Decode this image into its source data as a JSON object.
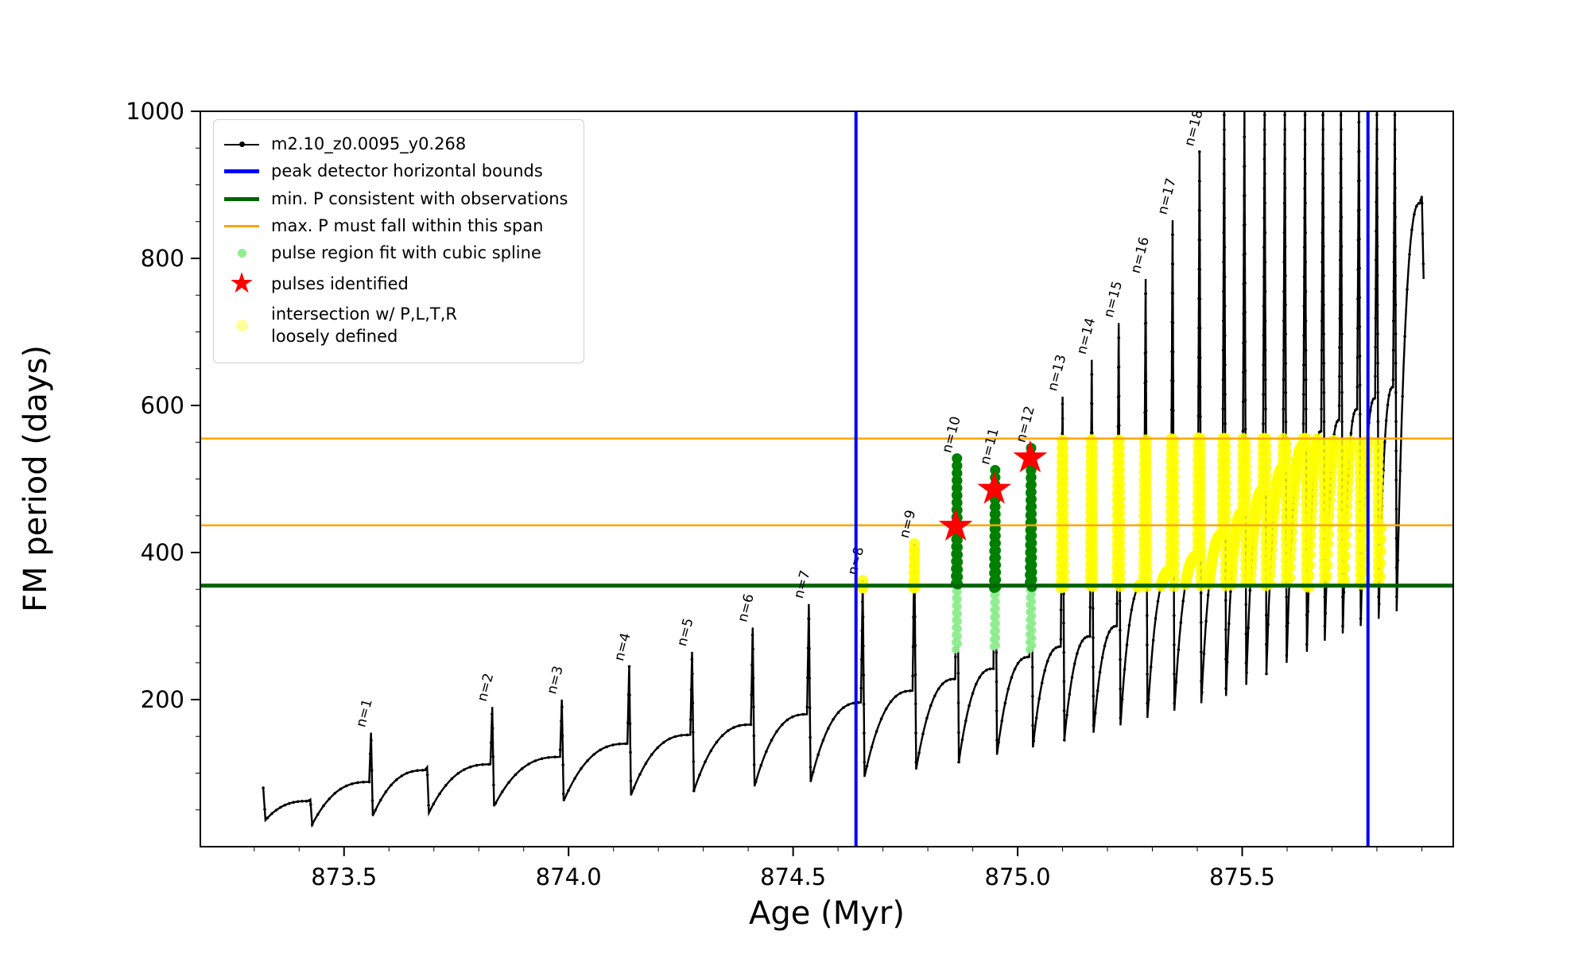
{
  "chart_data": {
    "type": "line",
    "title": "",
    "xlabel": "Age (Myr)",
    "ylabel": "FM period (days)",
    "xlim": [
      873.18,
      875.97
    ],
    "ylim": [
      0,
      1000
    ],
    "xticks": [
      873.5,
      874.0,
      874.5,
      875.0,
      875.5
    ],
    "yticks": [
      200,
      400,
      600,
      800,
      1000
    ],
    "x_minor_step": 0.1,
    "y_minor_step": 50,
    "grid": false,
    "legend_position": "upper left",
    "series_label": "m2.10_z0.0095_y0.268",
    "colors": {
      "series": "#000000",
      "bounds": "#0000ff",
      "min_p": "#006400",
      "max_p_span": "#ffa500",
      "spline_fit": "#90ee90",
      "pulse_region": "#008000",
      "pulse_star": "#ff0000",
      "intersection": "#ffff00"
    },
    "start": {
      "x": 873.32,
      "y": 80,
      "drop": 36
    },
    "pulses": [
      {
        "x": 873.425,
        "shoulder": 62,
        "peak": 64,
        "dip": 30
      },
      {
        "x": 873.56,
        "shoulder": 88,
        "peak": 155,
        "dip": 42,
        "label": "n=1"
      },
      {
        "x": 873.685,
        "shoulder": 104,
        "peak": 108,
        "dip": 46
      },
      {
        "x": 873.83,
        "shoulder": 112,
        "peak": 190,
        "dip": 55,
        "label": "n=2"
      },
      {
        "x": 873.985,
        "shoulder": 122,
        "peak": 200,
        "dip": 62,
        "label": "n=3"
      },
      {
        "x": 874.135,
        "shoulder": 140,
        "peak": 245,
        "dip": 70,
        "label": "n=4"
      },
      {
        "x": 874.275,
        "shoulder": 152,
        "peak": 265,
        "dip": 76,
        "label": "n=5"
      },
      {
        "x": 874.41,
        "shoulder": 166,
        "peak": 298,
        "dip": 82,
        "label": "n=6"
      },
      {
        "x": 874.535,
        "shoulder": 180,
        "peak": 330,
        "dip": 88,
        "label": "n=7"
      },
      {
        "x": 874.655,
        "shoulder": 196,
        "peak": 362,
        "dip": 95,
        "label": "n=8"
      },
      {
        "x": 874.77,
        "shoulder": 212,
        "peak": 412,
        "dip": 105,
        "label": "n=9"
      },
      {
        "x": 874.865,
        "shoulder": 228,
        "peak": 528,
        "dip": 115,
        "label": "n=10"
      },
      {
        "x": 874.95,
        "shoulder": 242,
        "peak": 512,
        "dip": 125,
        "label": "n=11"
      },
      {
        "x": 875.03,
        "shoulder": 258,
        "peak": 542,
        "dip": 135,
        "label": "n=12"
      },
      {
        "x": 875.1,
        "shoulder": 272,
        "peak": 612,
        "dip": 145,
        "label": "n=13"
      },
      {
        "x": 875.165,
        "shoulder": 286,
        "peak": 662,
        "dip": 155,
        "label": "n=14"
      },
      {
        "x": 875.225,
        "shoulder": 300,
        "peak": 712,
        "dip": 165,
        "label": "n=15"
      },
      {
        "x": 875.285,
        "shoulder": 358,
        "peak": 772,
        "dip": 175,
        "label": "n=16"
      },
      {
        "x": 875.345,
        "shoulder": 376,
        "peak": 852,
        "dip": 185,
        "label": "n=17"
      },
      {
        "x": 875.405,
        "shoulder": 396,
        "peak": 945,
        "dip": 195,
        "label": "n=18"
      },
      {
        "x": 875.46,
        "shoulder": 425,
        "peak": 1005,
        "dip": 205
      },
      {
        "x": 875.505,
        "shoulder": 455,
        "peak": 1005,
        "dip": 220
      },
      {
        "x": 875.55,
        "shoulder": 485,
        "peak": 1005,
        "dip": 235
      },
      {
        "x": 875.595,
        "shoulder": 515,
        "peak": 1005,
        "dip": 250
      },
      {
        "x": 875.64,
        "shoulder": 545,
        "peak": 1005,
        "dip": 265
      },
      {
        "x": 875.68,
        "shoulder": 565,
        "peak": 1005,
        "dip": 280
      },
      {
        "x": 875.72,
        "shoulder": 580,
        "peak": 1005,
        "dip": 290
      },
      {
        "x": 875.76,
        "shoulder": 595,
        "peak": 1005,
        "dip": 300
      },
      {
        "x": 875.8,
        "shoulder": 610,
        "peak": 1005,
        "dip": 310
      },
      {
        "x": 875.84,
        "shoulder": 625,
        "peak": 1005,
        "dip": 320
      },
      {
        "x": 875.9,
        "shoulder": 875,
        "peak": 885,
        "dip": 772
      }
    ],
    "vlines": {
      "x": [
        874.64,
        875.78
      ],
      "color": "#0000ff",
      "width": 4
    },
    "hlines": [
      {
        "y": 355,
        "color": "#006400",
        "width": 5
      },
      {
        "y": 437,
        "color": "#ffa500",
        "width": 2.5
      },
      {
        "y": 555,
        "color": "#ffa500",
        "width": 2.5
      }
    ],
    "stars": [
      [
        874.862,
        437
      ],
      [
        874.948,
        487
      ],
      [
        875.028,
        530
      ]
    ],
    "green_windows": [
      [
        874.853,
        874.877
      ],
      [
        874.938,
        874.962
      ],
      [
        875.018,
        875.042
      ]
    ],
    "highlight_band": {
      "xmin": 874.62,
      "xmax": 875.81,
      "ymin": 352,
      "ymax": 556
    }
  },
  "legend": {
    "entries": [
      {
        "icon": "series-line-icon",
        "type": "line-dot",
        "color": "#000000",
        "lw": 2,
        "lines": [
          "m2.10_z0.0095_y0.268"
        ]
      },
      {
        "icon": "blue-line-icon",
        "type": "line",
        "color": "#0000ff",
        "lw": 5,
        "lines": [
          "peak detector horizontal bounds"
        ]
      },
      {
        "icon": "green-line-icon",
        "type": "line",
        "color": "#006400",
        "lw": 5,
        "lines": [
          "min. P consistent with observations"
        ]
      },
      {
        "icon": "orange-line-icon",
        "type": "line",
        "color": "#ffa500",
        "lw": 3,
        "lines": [
          "max. P must fall within this span"
        ]
      },
      {
        "icon": "lightgreen-dot-icon",
        "type": "dot",
        "color": "#90ee90",
        "size": 11,
        "lines": [
          "pulse region fit with cubic spline"
        ]
      },
      {
        "icon": "red-star-icon",
        "type": "star",
        "color": "#ff0000",
        "lines": [
          "pulses identified"
        ]
      },
      {
        "icon": "yellow-dot-icon",
        "type": "dot",
        "color": "#ffff99",
        "size": 15,
        "lines": [
          "intersection w/ P,L,T,R",
          "loosely defined"
        ]
      }
    ]
  }
}
